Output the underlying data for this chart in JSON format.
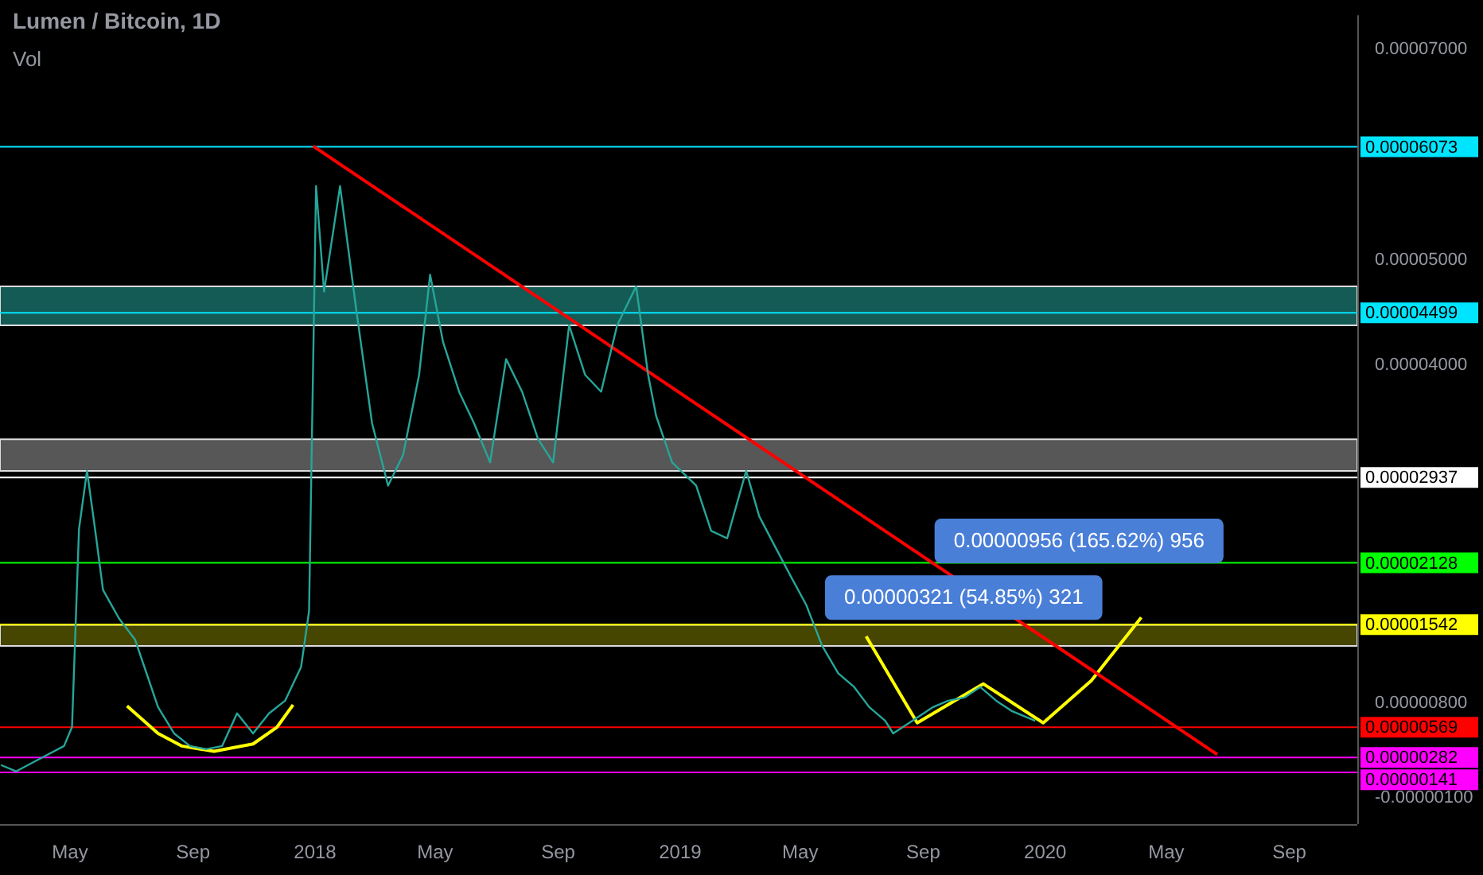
{
  "chart_data": {
    "type": "line",
    "title": "Lumen / Bitcoin, 1D",
    "subtitle": "Vol",
    "marker": "none",
    "line_style": "solid",
    "xlim": [
      "2017-02-20",
      "2020-11-08"
    ],
    "xticks": [
      {
        "value": "2017-05-01",
        "label": "May"
      },
      {
        "value": "2017-09-01",
        "label": "Sep"
      },
      {
        "value": "2018-01-01",
        "label": "2018"
      },
      {
        "value": "2018-05-01",
        "label": "May"
      },
      {
        "value": "2018-09-01",
        "label": "Sep"
      },
      {
        "value": "2019-01-01",
        "label": "2019"
      },
      {
        "value": "2019-05-01",
        "label": "May"
      },
      {
        "value": "2019-09-01",
        "label": "Sep"
      },
      {
        "value": "2020-01-01",
        "label": "2020"
      },
      {
        "value": "2020-05-01",
        "label": "May"
      },
      {
        "value": "2020-09-01",
        "label": "Sep"
      }
    ],
    "ylim": [
      -3.5e-06,
      7.32e-05
    ],
    "yticks": [
      {
        "value": 7e-05,
        "label": "0.00007000"
      },
      {
        "value": 5e-05,
        "label": "0.00005000"
      },
      {
        "value": 4e-05,
        "label": "0.00004000"
      },
      {
        "value": 8e-06,
        "label": "0.00000800"
      },
      {
        "value": -1e-06,
        "label": "-0.00000100"
      }
    ],
    "series": [
      {
        "color": "#26a69a",
        "x": [
          "2017-02-21",
          "2017-03-08",
          "2017-04-01",
          "2017-04-25",
          "2017-05-03",
          "2017-05-10",
          "2017-05-18",
          "2017-05-26",
          "2017-06-03",
          "2017-06-19",
          "2017-07-05",
          "2017-07-28",
          "2017-08-13",
          "2017-08-29",
          "2017-09-14",
          "2017-09-30",
          "2017-10-15",
          "2017-10-31",
          "2017-11-16",
          "2017-12-02",
          "2017-12-18",
          "2017-12-26",
          "2018-01-02",
          "2018-01-10",
          "2018-01-26",
          "2018-02-11",
          "2018-02-27",
          "2018-03-15",
          "2018-03-30",
          "2018-04-15",
          "2018-04-26",
          "2018-05-09",
          "2018-05-25",
          "2018-06-09",
          "2018-06-25",
          "2018-07-11",
          "2018-07-27",
          "2018-08-12",
          "2018-08-27",
          "2018-09-12",
          "2018-09-28",
          "2018-10-14",
          "2018-10-30",
          "2018-11-18",
          "2018-11-30",
          "2018-12-08",
          "2018-12-24",
          "2019-01-17",
          "2019-02-01",
          "2019-02-17",
          "2019-03-08",
          "2019-03-21",
          "2019-04-06",
          "2019-04-21",
          "2019-05-07",
          "2019-05-23",
          "2019-06-08",
          "2019-06-24",
          "2019-07-09",
          "2019-07-25",
          "2019-08-02",
          "2019-08-18",
          "2019-09-11",
          "2019-09-26",
          "2019-10-12",
          "2019-10-28",
          "2019-11-13",
          "2019-11-29",
          "2019-12-22"
        ],
        "values": [
          2.1e-06,
          1.5e-06,
          2.7e-06,
          3.9e-06,
          5.7e-06,
          2.45e-05,
          3e-05,
          2.45e-05,
          1.87e-05,
          1.6e-05,
          1.4e-05,
          7.6e-06,
          5.1e-06,
          3.9e-06,
          3.6e-06,
          3.9e-06,
          7e-06,
          5.1e-06,
          7e-06,
          8.2e-06,
          1.14e-05,
          1.67e-05,
          5.7e-05,
          4.7e-05,
          5.7e-05,
          4.54e-05,
          3.45e-05,
          2.86e-05,
          3.15e-05,
          3.91e-05,
          4.86e-05,
          4.22e-05,
          3.75e-05,
          3.45e-05,
          3.08e-05,
          4.06e-05,
          3.75e-05,
          3.3e-05,
          3.08e-05,
          4.38e-05,
          3.91e-05,
          3.75e-05,
          4.38e-05,
          4.75e-05,
          3.91e-05,
          3.52e-05,
          3.08e-05,
          2.86e-05,
          2.43e-05,
          2.36e-05,
          3e-05,
          2.57e-05,
          2.28e-05,
          2.01e-05,
          1.73e-05,
          1.34e-05,
          1.08e-05,
          9.5e-06,
          7.6e-06,
          6.3e-06,
          5.1e-06,
          6.1e-06,
          7.6e-06,
          8.2e-06,
          8.5e-06,
          9.5e-06,
          8.2e-06,
          7.2e-06,
          6.3e-06
        ]
      },
      {
        "color": "#ff0000",
        "x": [
          "2017-12-30",
          "2020-06-21"
        ],
        "values": [
          6.08e-05,
          3.1e-06
        ]
      },
      {
        "color": "#ffff00",
        "x": [
          "2017-06-27",
          "2017-07-28",
          "2017-08-21",
          "2017-09-22",
          "2017-10-31",
          "2017-11-24",
          "2017-12-10"
        ],
        "values": [
          7.7e-06,
          5.1e-06,
          3.9e-06,
          3.4e-06,
          4.1e-06,
          5.7e-06,
          7.8e-06
        ]
      },
      {
        "color": "#ffff00",
        "x": [
          "2019-07-06",
          "2019-08-26",
          "2019-10-31",
          "2019-12-30",
          "2020-02-16",
          "2020-04-06"
        ],
        "values": [
          1.43e-05,
          6.1e-06,
          9.8e-06,
          6.1e-06,
          1.01e-05,
          1.61e-05
        ]
      }
    ],
    "bands": [
      {
        "axis": "y",
        "from": 4.38e-05,
        "to": 4.75e-05,
        "color": "#26a69a"
      },
      {
        "axis": "y",
        "from": 3e-05,
        "to": 3.3e-05,
        "color": "#9e9e9e"
      },
      {
        "axis": "y",
        "from": 1.34e-05,
        "to": 1.54e-05,
        "color": "#808000"
      }
    ],
    "ref_lines": [
      {
        "axis": "y",
        "value": 6.073e-05,
        "label": "0.00006073",
        "color": "#00e5ff"
      },
      {
        "axis": "y",
        "value": 4.499e-05,
        "label": "0.00004499",
        "color": "#00e5ff"
      },
      {
        "axis": "y",
        "value": 2.937e-05,
        "label": "0.00002937",
        "color": "#ffffff"
      },
      {
        "axis": "y",
        "value": 2.128e-05,
        "label": "0.00002128",
        "color": "#00ff00"
      },
      {
        "axis": "y",
        "value": 1.542e-05,
        "label": "0.00001542",
        "color": "#ffff00"
      },
      {
        "axis": "y",
        "value": 5.69e-06,
        "label": "0.00000569",
        "color": "#ff0000"
      },
      {
        "axis": "y",
        "value": 2.82e-06,
        "label": "0.00000282",
        "color": "#ff00ff"
      },
      {
        "axis": "y",
        "value": 1.41e-06,
        "label": "0.00000141",
        "color": "#ff00ff"
      }
    ],
    "annotations": [
      "0.00000956 (165.62%) 956",
      "0.00000321 (54.85%) 321"
    ]
  }
}
